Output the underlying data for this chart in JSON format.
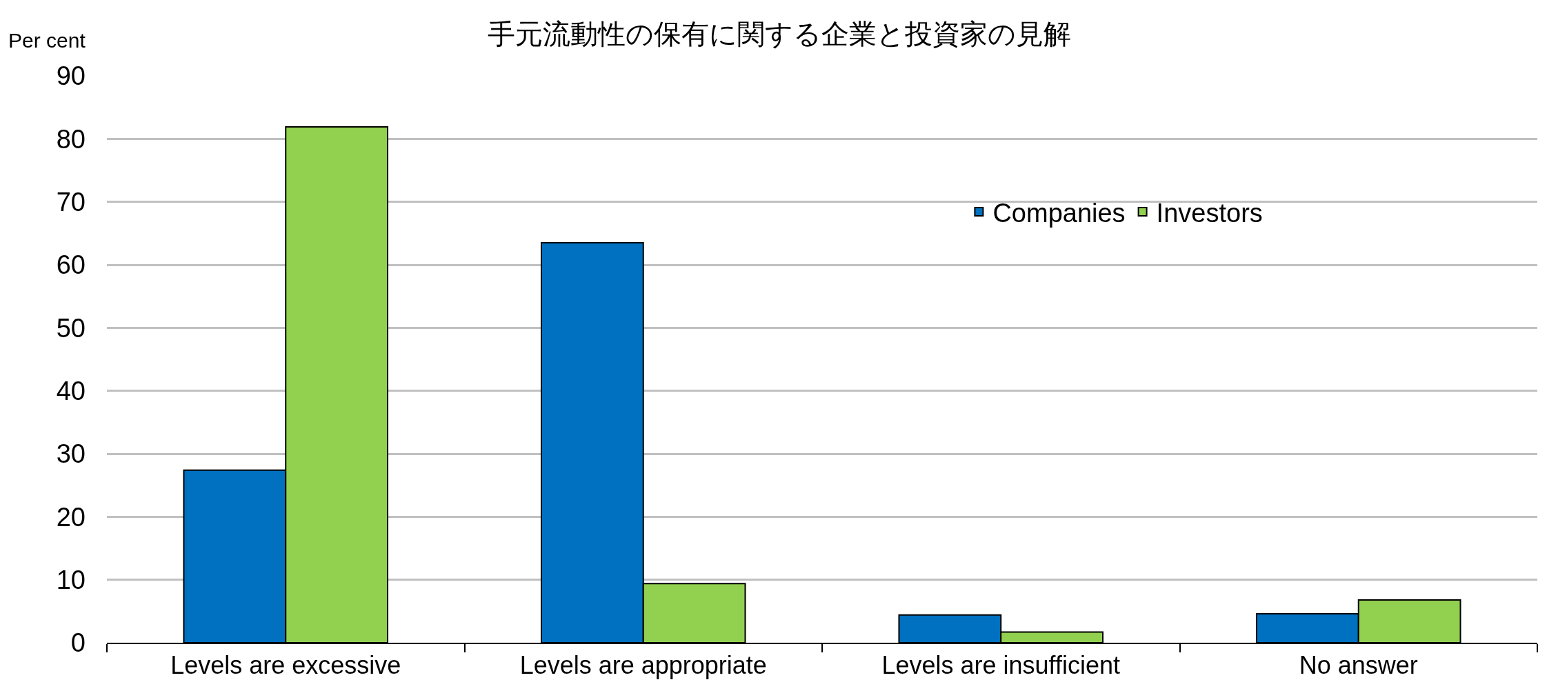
{
  "chart_data": {
    "type": "bar",
    "title": "手元流動性の保有に関する企業と投資家の見解",
    "ylabel": "Per cent",
    "categories": [
      "Levels are excessive",
      "Levels are appropriate",
      "Levels are insufficient",
      "No answer"
    ],
    "series": [
      {
        "name": "Companies",
        "color": "#0070c0",
        "values": [
          27.4,
          63.5,
          4.4,
          4.6
        ]
      },
      {
        "name": "Investors",
        "color": "#92d050",
        "values": [
          81.9,
          9.4,
          1.7,
          6.8
        ]
      }
    ],
    "ylim": [
      0,
      90
    ],
    "yticks": [
      0,
      10,
      20,
      30,
      40,
      50,
      60,
      70,
      80,
      90
    ],
    "grid": "y",
    "legend": "top right"
  }
}
